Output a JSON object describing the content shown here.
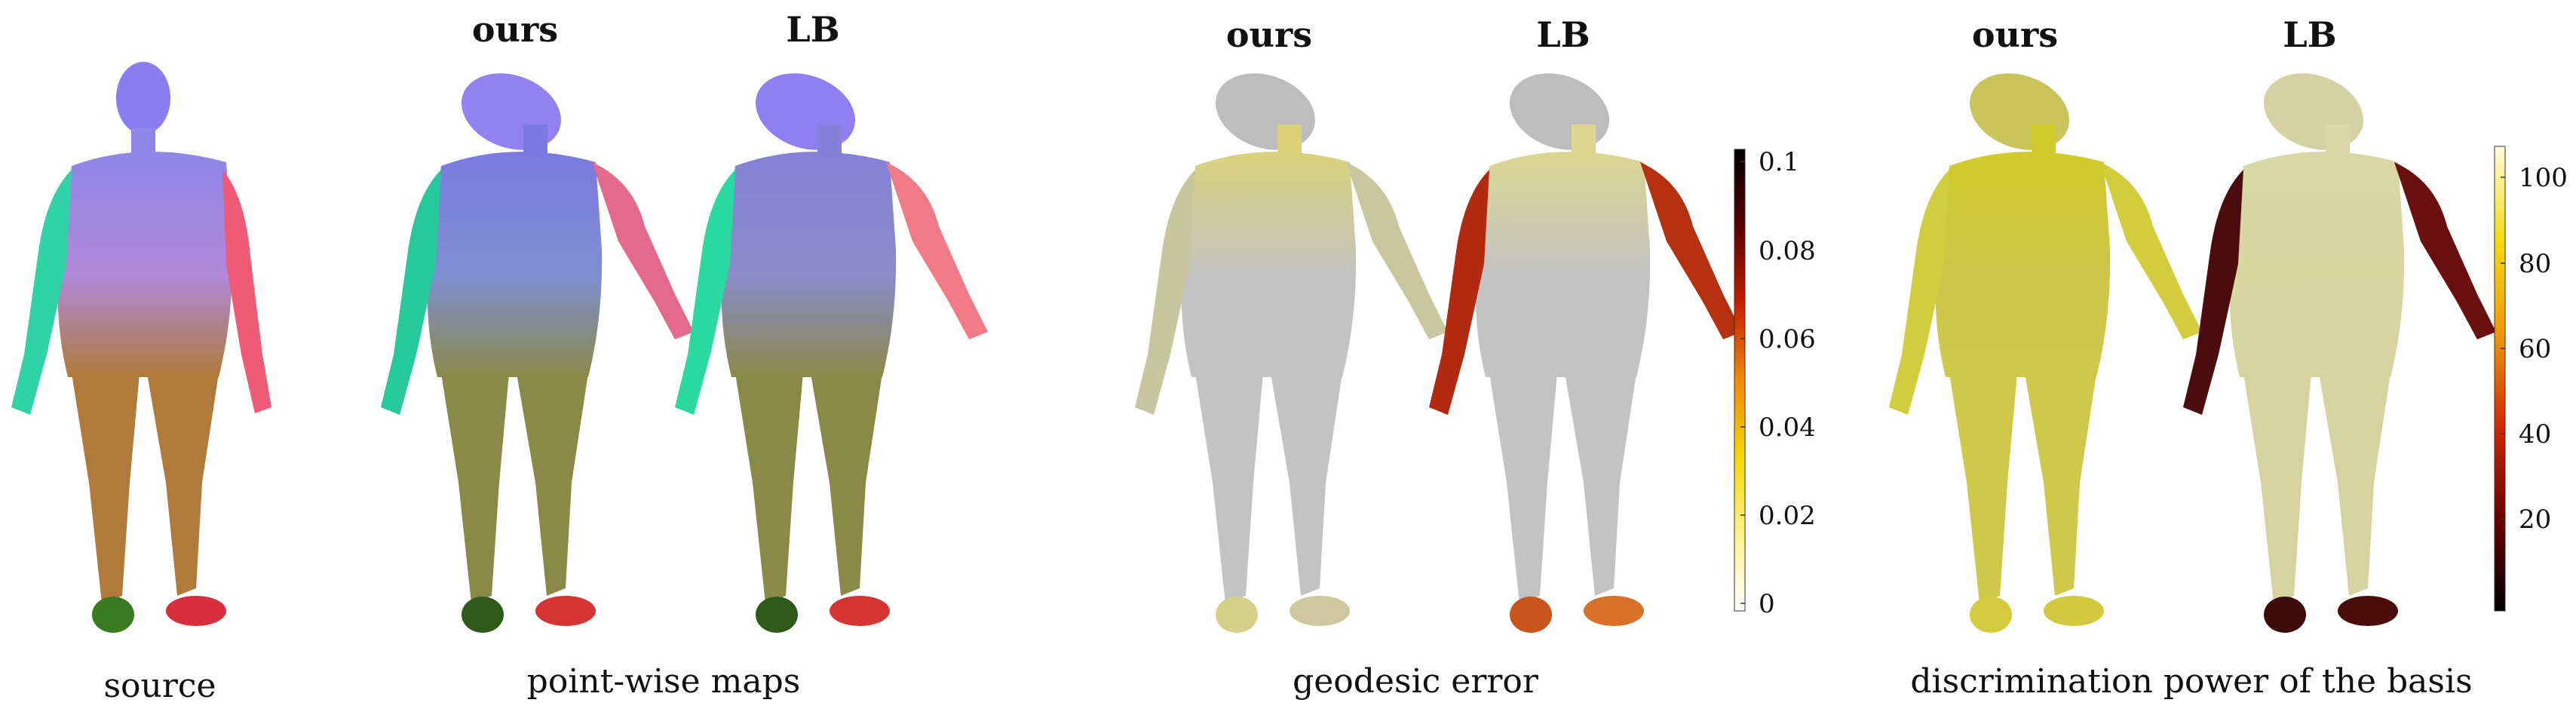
{
  "headers": {
    "maps_ours": "ours",
    "maps_lb": "LB",
    "geo_ours": "ours",
    "geo_lb": "LB",
    "disc_ours": "ours",
    "disc_lb": "LB"
  },
  "captions": {
    "source": "source",
    "maps": "point-wise maps",
    "geodesic": "geodesic error",
    "discrimination": "discrimination power of the basis"
  },
  "colorbars": [
    {
      "name": "geodesic-error",
      "ticks": [
        "0.1",
        "0.08",
        "0.06",
        "0.04",
        "0.02",
        "0"
      ],
      "colors": [
        "#ffffff",
        "#fff38a",
        "#f5d800",
        "#f08a00",
        "#c81e00",
        "#5a0000",
        "#000000"
      ]
    },
    {
      "name": "discrimination-power",
      "ticks": [
        "100",
        "80",
        "60",
        "40",
        "20"
      ],
      "colors": [
        "#000000",
        "#6b0000",
        "#d42800",
        "#f09a00",
        "#f5dc10",
        "#fffbe0"
      ]
    }
  ],
  "panels": [
    {
      "name": "source",
      "body": "#b089d8",
      "torso": "#8f86e8",
      "left": "#2fd3a5",
      "right": "#ef5a76",
      "legs": "#b07a3a",
      "feet_l": "#3a7a22",
      "feet_r": "#d82d3a",
      "head": "#8c7cf2"
    },
    {
      "name": "ours-map",
      "body": "#7f8fd0",
      "torso": "#7a7ae0",
      "left": "#27c89a",
      "right": "#e4698e",
      "legs": "#8a8a48",
      "feet_l": "#2f5a1c",
      "feet_r": "#d63434",
      "head": "#9182f0"
    },
    {
      "name": "lb-map",
      "body": "#8a8bc8",
      "torso": "#8482d8",
      "left": "#29d99f",
      "right": "#f07a86",
      "legs": "#8a8a48",
      "feet_l": "#2f5a1c",
      "feet_r": "#d63434",
      "head": "#8f7ff2"
    },
    {
      "name": "ours-geodesic",
      "body": "#c3c3c3",
      "torso": "#d9d27a",
      "left": "#c6c6a0",
      "right": "#c9c7a0",
      "legs": "#c3c3c3",
      "feet_l": "#d5cf8c",
      "feet_r": "#cfc7a0",
      "head": "#bdbdbd"
    },
    {
      "name": "lb-geodesic",
      "body": "#c3c3c3",
      "torso": "#dcd690",
      "left": "#b22a12",
      "right": "#b5300f",
      "legs": "#c3c3c3",
      "feet_l": "#c8551c",
      "feet_r": "#d9702a",
      "head": "#bdbdbd"
    },
    {
      "name": "ours-discrimination",
      "body": "#cdc64a",
      "torso": "#d1cb2a",
      "left": "#d2cd3e",
      "right": "#d3cc3c",
      "legs": "#cfc84a",
      "feet_l": "#d4cc3e",
      "feet_r": "#d3c93e",
      "head": "#c9c55c"
    },
    {
      "name": "lb-discrimination",
      "body": "#d8d7a2",
      "torso": "#d9d7a6",
      "left": "#4a0c0c",
      "right": "#6a0f0f",
      "legs": "#d5d3a0",
      "feet_l": "#3d0a0a",
      "feet_r": "#4a0b0b",
      "head": "#d4d2a4"
    }
  ]
}
